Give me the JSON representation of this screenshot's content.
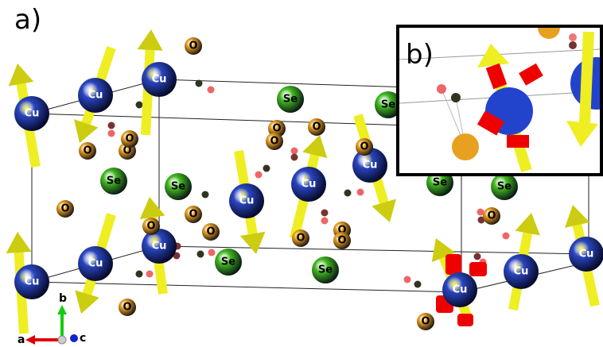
{
  "panel_a": {
    "label": "a)",
    "atoms": [
      "Cu",
      "Cu",
      "Cu",
      "Cu",
      "Cu",
      "Cu",
      "Cu",
      "Cu",
      "Cu",
      "Cu",
      "Cu",
      "Cu",
      "Se",
      "Se",
      "Se",
      "Se",
      "Se",
      "Se",
      "Se",
      "Se",
      "O",
      "O",
      "O",
      "O",
      "O",
      "O",
      "O",
      "O",
      "O",
      "O",
      "O",
      "O",
      "O",
      "O",
      "O",
      "O",
      "O",
      "O"
    ]
  },
  "panel_b": {
    "label": "b)"
  },
  "axes": {
    "a": "a",
    "b": "b",
    "c": "c"
  }
}
